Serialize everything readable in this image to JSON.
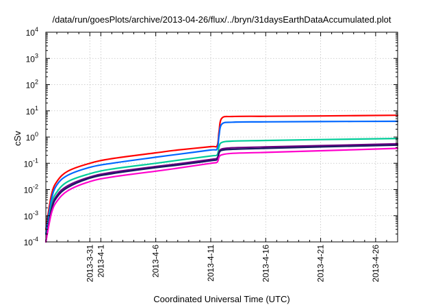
{
  "chart_data": {
    "type": "line",
    "title": "/data/run/goesPlots/archive/2013-04-26/flux/../bryn/31daysEarthDataAccumulated.plot",
    "xlabel": "Coordinated Universal Time (UTC)",
    "ylabel": "cSv",
    "y_scale": "log",
    "ylim": [
      0.0001,
      10000
    ],
    "xlim": [
      "2013-03-27",
      "2013-04-28"
    ],
    "grid": true,
    "legend": "none",
    "y_ticks": [
      {
        "base": "10",
        "exp": "-4",
        "value": 0.0001
      },
      {
        "base": "10",
        "exp": "-3",
        "value": 0.001
      },
      {
        "base": "10",
        "exp": "-2",
        "value": 0.01
      },
      {
        "base": "10",
        "exp": "-1",
        "value": 0.1
      },
      {
        "base": "10",
        "exp": "0",
        "value": 1
      },
      {
        "base": "10",
        "exp": "1",
        "value": 10
      },
      {
        "base": "10",
        "exp": "2",
        "value": 100
      },
      {
        "base": "10",
        "exp": "3",
        "value": 1000
      },
      {
        "base": "10",
        "exp": "4",
        "value": 10000
      }
    ],
    "x_ticks": [
      {
        "date": "2013-03-31",
        "label": "2013-3-31"
      },
      {
        "date": "2013-04-01",
        "label": "2013-4-1"
      },
      {
        "date": "2013-04-06",
        "label": "2013-4-6"
      },
      {
        "date": "2013-04-11",
        "label": "2013-4-11"
      },
      {
        "date": "2013-04-16",
        "label": "2013-4-16"
      },
      {
        "date": "2013-04-21",
        "label": "2013-4-21"
      },
      {
        "date": "2013-04-26",
        "label": "2013-4-26"
      }
    ],
    "x_minor_ticks": [
      "2013-03-27",
      "2013-03-28",
      "2013-03-29",
      "2013-03-30",
      "2013-04-02",
      "2013-04-03",
      "2013-04-04",
      "2013-04-05",
      "2013-04-07",
      "2013-04-08",
      "2013-04-09",
      "2013-04-10",
      "2013-04-12",
      "2013-04-13",
      "2013-04-14",
      "2013-04-15",
      "2013-04-17",
      "2013-04-18",
      "2013-04-19",
      "2013-04-20",
      "2013-04-22",
      "2013-04-23",
      "2013-04-24",
      "2013-04-25",
      "2013-04-27",
      "2013-04-28"
    ],
    "series": [
      {
        "color": "#ff0000",
        "points": [
          [
            "2013-03-27",
            0.0003
          ],
          [
            "2013-03-27T12:00",
            0.006
          ],
          [
            "2013-03-28",
            0.02
          ],
          [
            "2013-03-29",
            0.05
          ],
          [
            "2013-03-31",
            0.1
          ],
          [
            "2013-04-02",
            0.15
          ],
          [
            "2013-04-06",
            0.25
          ],
          [
            "2013-04-08",
            0.32
          ],
          [
            "2013-04-11",
            0.43
          ],
          [
            "2013-04-11T14:00",
            0.47
          ],
          [
            "2013-04-11T18:00",
            1.6
          ],
          [
            "2013-04-12",
            5.2
          ],
          [
            "2013-04-13",
            6.1
          ],
          [
            "2013-04-16",
            6.2
          ],
          [
            "2013-04-21",
            6.4
          ],
          [
            "2013-04-28",
            6.8
          ]
        ]
      },
      {
        "color": "#0066ff",
        "points": [
          [
            "2013-03-27",
            0.0002
          ],
          [
            "2013-03-27T12:00",
            0.004
          ],
          [
            "2013-03-28",
            0.015
          ],
          [
            "2013-03-29",
            0.035
          ],
          [
            "2013-03-31",
            0.07
          ],
          [
            "2013-04-02",
            0.1
          ],
          [
            "2013-04-06",
            0.17
          ],
          [
            "2013-04-08",
            0.22
          ],
          [
            "2013-04-11",
            0.32
          ],
          [
            "2013-04-11T14:00",
            0.36
          ],
          [
            "2013-04-11T18:00",
            1.1
          ],
          [
            "2013-04-12",
            3.1
          ],
          [
            "2013-04-13",
            3.7
          ],
          [
            "2013-04-16",
            3.8
          ],
          [
            "2013-04-21",
            3.9
          ],
          [
            "2013-04-28",
            4.0
          ]
        ]
      },
      {
        "color": "#00cc99",
        "points": [
          [
            "2013-03-27",
            0.0001
          ],
          [
            "2013-03-27T12:00",
            0.0025
          ],
          [
            "2013-03-28",
            0.008
          ],
          [
            "2013-03-29",
            0.02
          ],
          [
            "2013-03-31",
            0.04
          ],
          [
            "2013-04-02",
            0.06
          ],
          [
            "2013-04-06",
            0.1
          ],
          [
            "2013-04-08",
            0.13
          ],
          [
            "2013-04-11",
            0.19
          ],
          [
            "2013-04-11T14:00",
            0.21
          ],
          [
            "2013-04-11T18:00",
            0.42
          ],
          [
            "2013-04-12",
            0.62
          ],
          [
            "2013-04-13",
            0.7
          ],
          [
            "2013-04-16",
            0.74
          ],
          [
            "2013-04-21",
            0.8
          ],
          [
            "2013-04-28",
            0.88
          ]
        ]
      },
      {
        "color": "#6a0080",
        "points": [
          [
            "2013-03-27",
            0.0001
          ],
          [
            "2013-03-27T12:00",
            0.0018
          ],
          [
            "2013-03-28",
            0.006
          ],
          [
            "2013-03-29",
            0.014
          ],
          [
            "2013-03-31",
            0.03
          ],
          [
            "2013-04-02",
            0.045
          ],
          [
            "2013-04-06",
            0.075
          ],
          [
            "2013-04-08",
            0.095
          ],
          [
            "2013-04-11",
            0.14
          ],
          [
            "2013-04-11T14:00",
            0.16
          ],
          [
            "2013-04-11T18:00",
            0.27
          ],
          [
            "2013-04-12",
            0.35
          ],
          [
            "2013-04-13",
            0.39
          ],
          [
            "2013-04-16",
            0.42
          ],
          [
            "2013-04-21",
            0.47
          ],
          [
            "2013-04-28",
            0.55
          ]
        ]
      },
      {
        "color": "#1a1a66",
        "points": [
          [
            "2013-03-27",
            0.0001
          ],
          [
            "2013-03-27T12:00",
            0.0016
          ],
          [
            "2013-03-28",
            0.005
          ],
          [
            "2013-03-29",
            0.012
          ],
          [
            "2013-03-31",
            0.027
          ],
          [
            "2013-04-02",
            0.04
          ],
          [
            "2013-04-06",
            0.068
          ],
          [
            "2013-04-08",
            0.085
          ],
          [
            "2013-04-11",
            0.125
          ],
          [
            "2013-04-11T14:00",
            0.14
          ],
          [
            "2013-04-11T18:00",
            0.24
          ],
          [
            "2013-04-12",
            0.31
          ],
          [
            "2013-04-13",
            0.34
          ],
          [
            "2013-04-16",
            0.37
          ],
          [
            "2013-04-21",
            0.42
          ],
          [
            "2013-04-28",
            0.49
          ]
        ]
      },
      {
        "color": "#ff00cc",
        "points": [
          [
            "2013-03-27",
            0.0001
          ],
          [
            "2013-03-27T12:00",
            0.0012
          ],
          [
            "2013-03-28",
            0.0035
          ],
          [
            "2013-03-29",
            0.009
          ],
          [
            "2013-03-31",
            0.02
          ],
          [
            "2013-04-02",
            0.03
          ],
          [
            "2013-04-06",
            0.05
          ],
          [
            "2013-04-08",
            0.065
          ],
          [
            "2013-04-11",
            0.1
          ],
          [
            "2013-04-11T14:00",
            0.11
          ],
          [
            "2013-04-11T18:00",
            0.17
          ],
          [
            "2013-04-12",
            0.21
          ],
          [
            "2013-04-13",
            0.24
          ],
          [
            "2013-04-16",
            0.26
          ],
          [
            "2013-04-21",
            0.3
          ],
          [
            "2013-04-28",
            0.37
          ]
        ]
      }
    ]
  }
}
